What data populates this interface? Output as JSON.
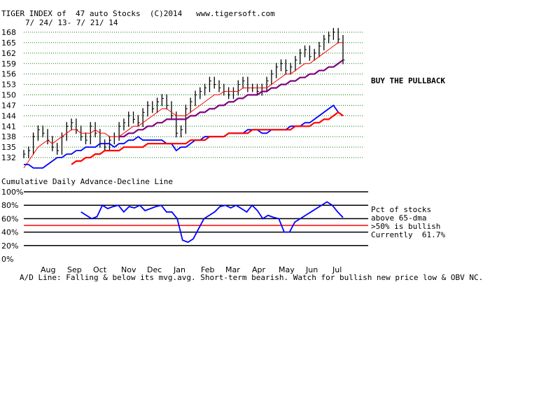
{
  "header": {
    "title": "TIGER INDEX of  47 auto Stocks  (C)2014   www.tigersoft.com",
    "date_range": "7/ 24/ 13- 7/ 21/ 14"
  },
  "annotation": "BUY THE PULLBACK",
  "lower_panel": {
    "title": "Cumulative Daily Advance-Decline Line",
    "legend": [
      "Pct of stocks",
      "above 65-dma",
      ">50% is bullish",
      "Currently  61.7%"
    ]
  },
  "footer_note": "A/D Line: Falling & below its mvg.avg. Short-term bearish. Watch for bullish new price low & OBV NC.",
  "colors": {
    "price_bars": "#000000",
    "ma21": "#ff0000",
    "ma65": "#800080",
    "ad_line": "#0000ff",
    "ad_ma": "#ff0000",
    "pct_line": "#0000ff",
    "threshold_line": "#ff0000",
    "grid": "#008000"
  },
  "chart_data": [
    {
      "type": "line",
      "name": "price",
      "y_ticks": [
        132,
        135,
        138,
        141,
        144,
        147,
        150,
        153,
        156,
        159,
        162,
        165,
        168
      ],
      "ylim": [
        129,
        168
      ],
      "grid": true,
      "x_labels": [
        "Aug",
        "Sep",
        "Oct",
        "Nov",
        "Dec",
        "Jan",
        "Feb",
        "Mar",
        "Apr",
        "May",
        "Jun",
        "Jul"
      ],
      "x_start": 0,
      "series": [
        {
          "values": [
            133,
            134,
            138,
            140,
            139,
            137,
            135,
            134,
            138,
            141,
            142,
            140,
            138,
            137,
            141,
            139,
            136,
            135,
            137,
            138,
            141,
            142,
            144,
            143,
            142,
            145,
            147,
            146,
            148,
            149,
            147,
            144,
            139,
            140,
            146,
            148,
            150,
            151,
            152,
            154,
            153,
            152,
            151,
            150,
            151,
            153,
            154,
            152,
            152,
            151,
            152,
            154,
            156,
            158,
            159,
            157,
            158,
            160,
            162,
            163,
            161,
            162,
            164,
            166,
            167,
            168,
            166,
            160
          ]
        },
        {
          "values": [
            129,
            131,
            133,
            135,
            136,
            137,
            136,
            137,
            138,
            139,
            140,
            140,
            139,
            139,
            139,
            140,
            139,
            139,
            138,
            138,
            138,
            139,
            140,
            141,
            141,
            142,
            143,
            144,
            145,
            146,
            146,
            145,
            144,
            144,
            144,
            145,
            146,
            147,
            148,
            149,
            150,
            150,
            151,
            151,
            151,
            151,
            152,
            152,
            152,
            152,
            152,
            152,
            153,
            154,
            155,
            156,
            156,
            157,
            158,
            159,
            159,
            160,
            161,
            162,
            163,
            164,
            165,
            165
          ]
        },
        {
          "values": [
            null,
            null,
            null,
            null,
            null,
            null,
            null,
            null,
            null,
            null,
            null,
            null,
            null,
            null,
            null,
            null,
            null,
            null,
            null,
            null,
            138,
            138,
            139,
            139,
            140,
            140,
            141,
            141,
            142,
            142,
            143,
            143,
            143,
            143,
            143,
            144,
            144,
            145,
            145,
            146,
            146,
            147,
            147,
            148,
            148,
            149,
            149,
            150,
            150,
            150,
            151,
            151,
            152,
            152,
            153,
            153,
            154,
            154,
            155,
            155,
            156,
            156,
            157,
            157,
            158,
            158,
            159,
            160
          ]
        },
        {
          "values": [
            130,
            130,
            129,
            129,
            129,
            130,
            131,
            132,
            132,
            133,
            133,
            134,
            134,
            135,
            135,
            135,
            136,
            136,
            136,
            135,
            136,
            136,
            137,
            137,
            138,
            137,
            137,
            137,
            137,
            137,
            136,
            136,
            134,
            135,
            135,
            136,
            137,
            137,
            138,
            138,
            138,
            138,
            138,
            139,
            139,
            139,
            139,
            140,
            140,
            140,
            139,
            139,
            140,
            140,
            140,
            140,
            141,
            141,
            141,
            142,
            142,
            143,
            144,
            145,
            146,
            147,
            145,
            144
          ]
        },
        {
          "values": [
            null,
            null,
            null,
            null,
            null,
            null,
            null,
            null,
            null,
            null,
            130,
            131,
            131,
            132,
            132,
            133,
            133,
            134,
            134,
            134,
            134,
            135,
            135,
            135,
            135,
            135,
            136,
            136,
            136,
            136,
            136,
            136,
            136,
            136,
            136,
            137,
            137,
            137,
            137,
            138,
            138,
            138,
            138,
            139,
            139,
            139,
            139,
            139,
            140,
            140,
            140,
            140,
            140,
            140,
            140,
            140,
            140,
            141,
            141,
            141,
            141,
            142,
            142,
            143,
            143,
            144,
            145,
            144
          ]
        }
      ]
    },
    {
      "type": "line",
      "name": "Pct of stocks above 65-dma",
      "y_ticks": [
        "0%",
        "20%",
        "40%",
        "60%",
        "80%",
        "100%"
      ],
      "ylim": [
        0,
        100
      ],
      "threshold": 50,
      "current": 61.7,
      "x_start": 12,
      "values": [
        70,
        65,
        60,
        63,
        80,
        75,
        78,
        80,
        70,
        78,
        76,
        80,
        72,
        75,
        78,
        80,
        70,
        70,
        60,
        28,
        25,
        30,
        45,
        60,
        65,
        70,
        78,
        80,
        76,
        80,
        75,
        70,
        80,
        72,
        60,
        65,
        62,
        60,
        40,
        40,
        55,
        60,
        65,
        70,
        75,
        80,
        85,
        80,
        70,
        61.7
      ]
    }
  ]
}
